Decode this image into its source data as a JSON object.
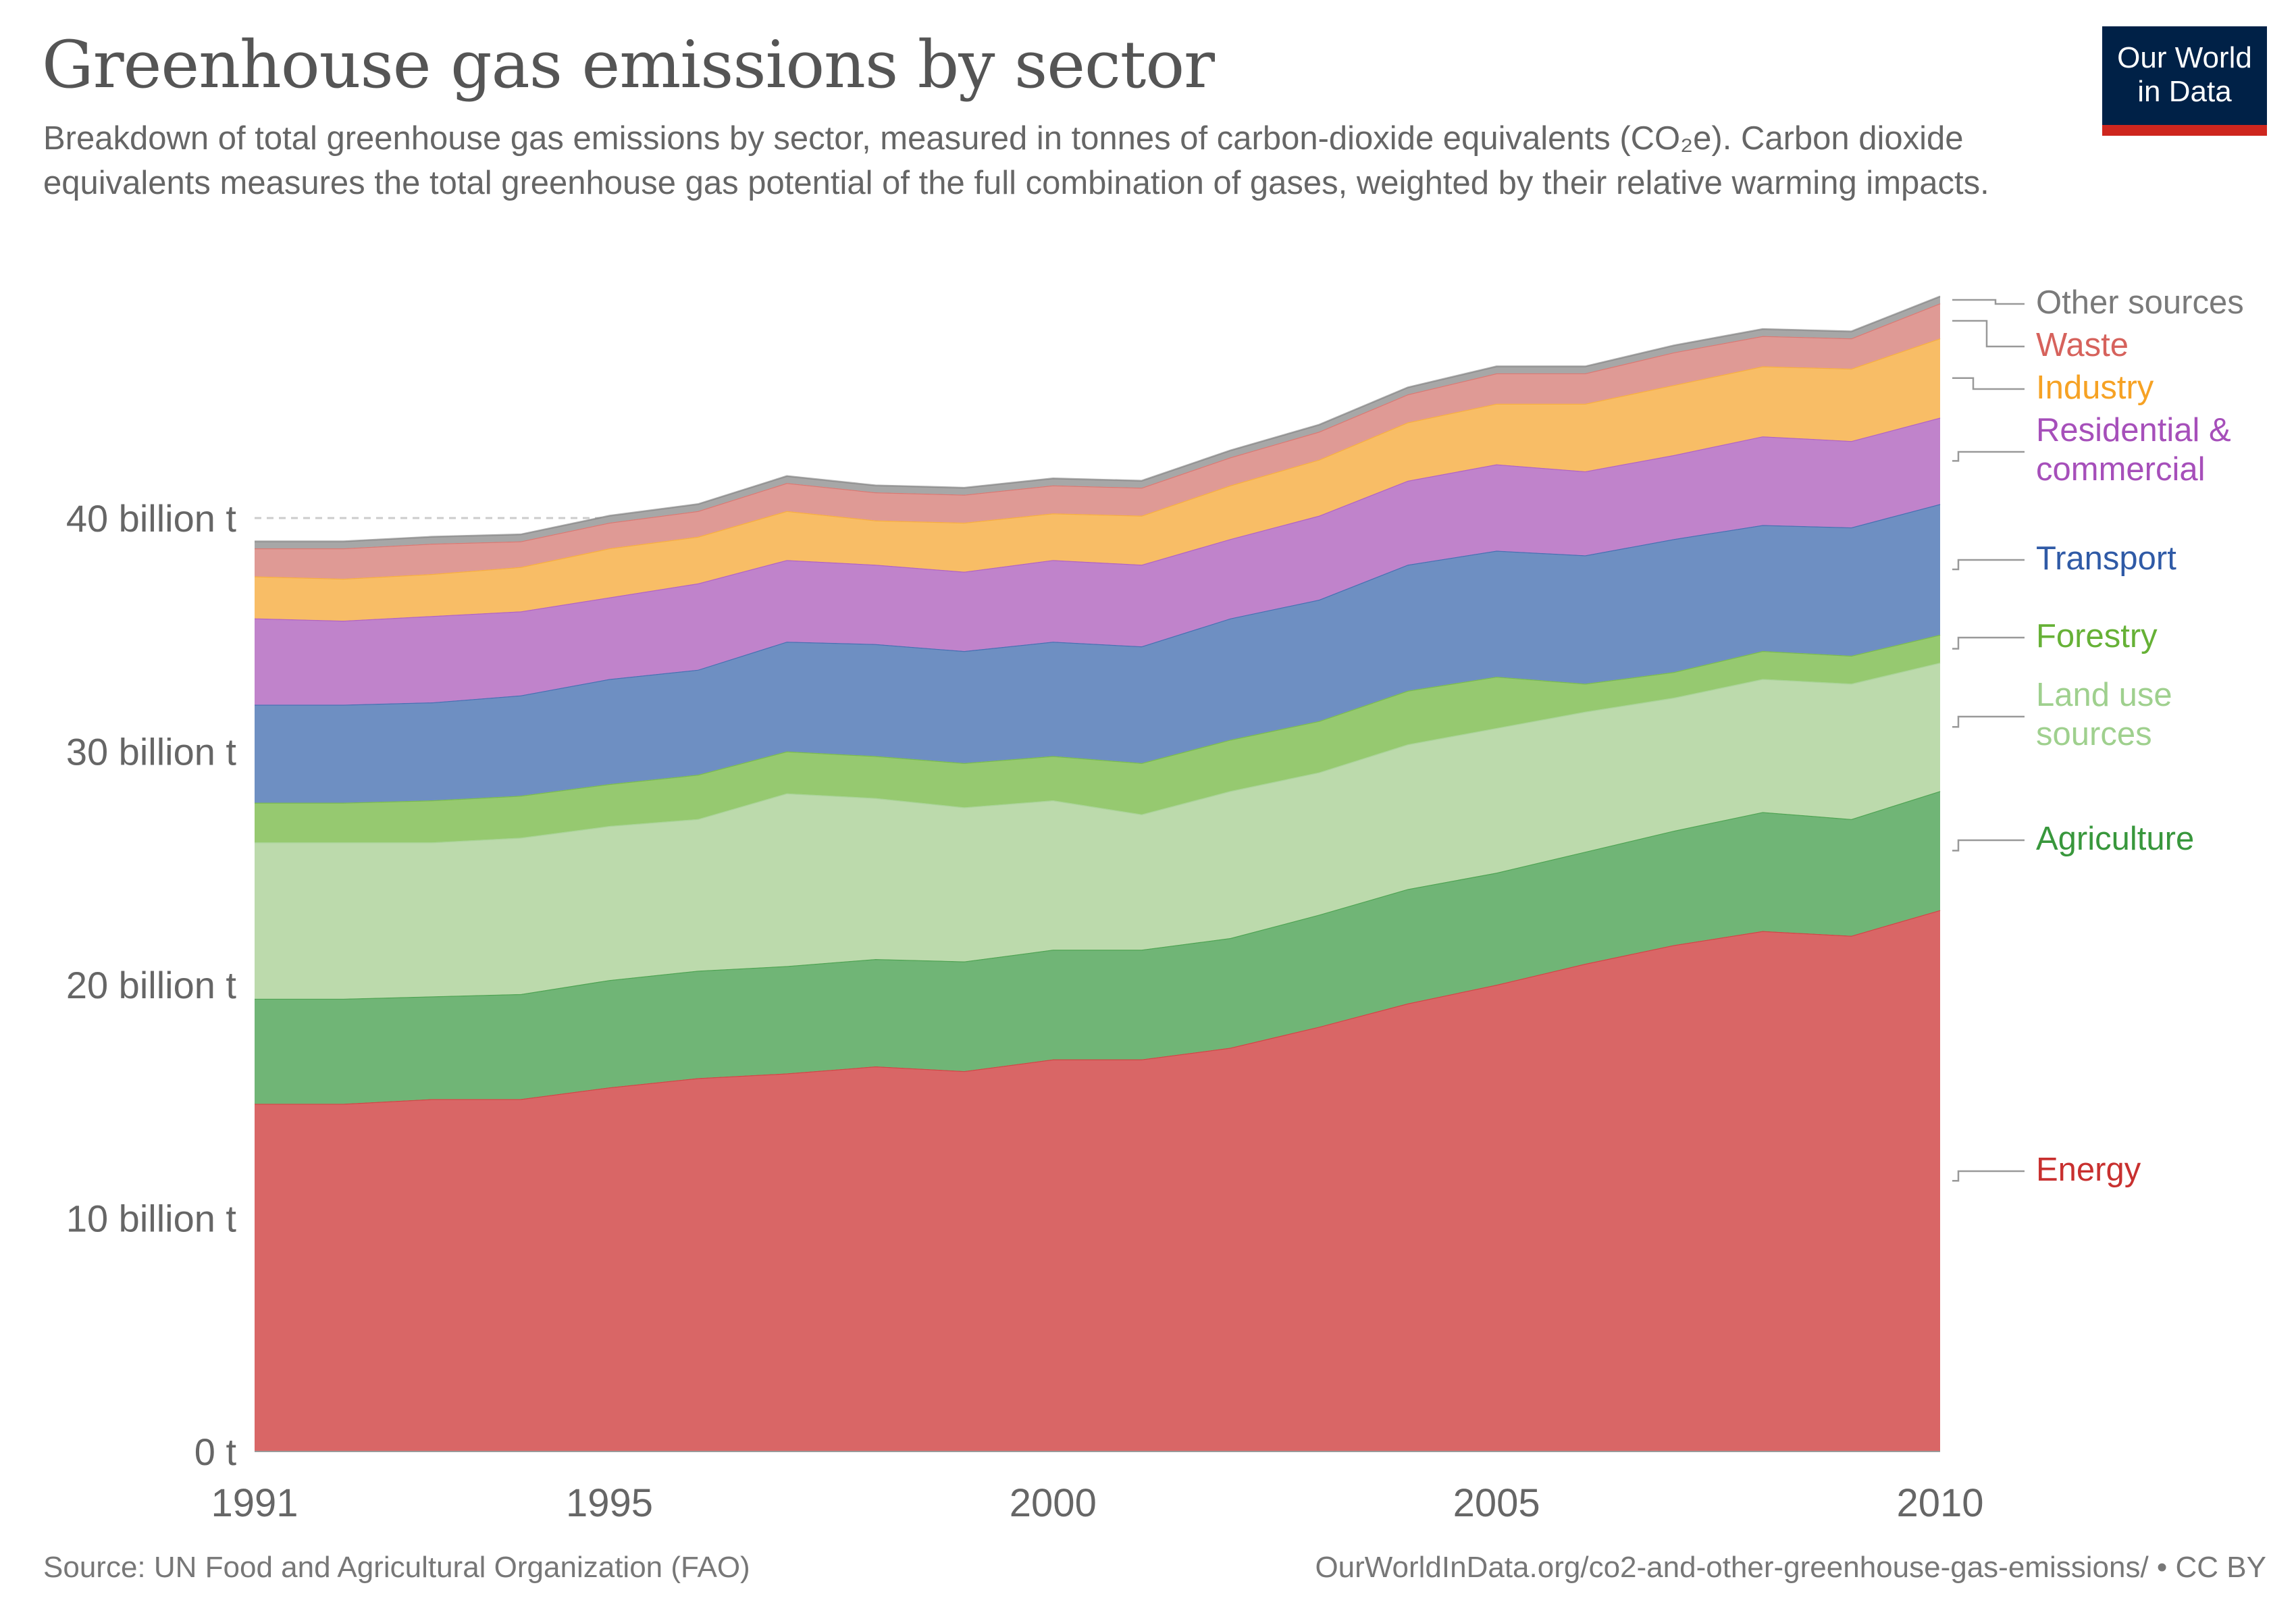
{
  "title": "Greenhouse gas emissions by sector",
  "subtitle": "Breakdown of total greenhouse gas emissions by sector, measured in tonnes of carbon-dioxide equivalents (CO₂e). Carbon dioxide equivalents measures the total greenhouse gas potential of the full combination of gases, weighted by their relative warming impacts.",
  "logo": {
    "line1": "Our World",
    "line2": "in Data"
  },
  "footer": {
    "source": "Source: UN Food and Agricultural Organization (FAO)",
    "url": "OurWorldInData.org/co2-and-other-greenhouse-gas-emissions/ • CC BY"
  },
  "chart_data": {
    "type": "area",
    "stacked": true,
    "title": "Greenhouse gas emissions by sector",
    "xlabel": "",
    "ylabel": "",
    "x": [
      1991,
      1992,
      1993,
      1994,
      1995,
      1996,
      1997,
      1998,
      1999,
      2000,
      2001,
      2002,
      2003,
      2004,
      2005,
      2006,
      2007,
      2008,
      2009,
      2010
    ],
    "x_ticks": [
      "1991",
      "1995",
      "2000",
      "2005",
      "2010"
    ],
    "y_ticks": [
      "0 t",
      "10 billion t",
      "20 billion t",
      "30 billion t",
      "40 billion t"
    ],
    "y_tick_values": [
      0,
      10,
      20,
      30,
      40
    ],
    "unit": "billion tonnes CO2e",
    "ylim": [
      0,
      50
    ],
    "grid": "horizontal dashed",
    "legend": "right (inline labels)",
    "series": [
      {
        "name": "Energy",
        "fill": "#d96666",
        "label_color": "#c8302f",
        "values": [
          14.9,
          14.9,
          15.1,
          15.1,
          15.6,
          16.0,
          16.2,
          16.5,
          16.3,
          16.8,
          16.8,
          17.3,
          18.2,
          19.2,
          20.0,
          20.9,
          21.7,
          22.3,
          22.1,
          23.2
        ]
      },
      {
        "name": "Agriculture",
        "fill": "#70b576",
        "label_color": "#38973c",
        "values": [
          4.5,
          4.5,
          4.4,
          4.5,
          4.6,
          4.6,
          4.6,
          4.6,
          4.7,
          4.7,
          4.7,
          4.7,
          4.8,
          4.9,
          4.8,
          4.8,
          4.9,
          5.1,
          5.0,
          5.1
        ]
      },
      {
        "name": "Land use sources",
        "fill": "#bcdaac",
        "label_color": "#9fd08e",
        "values": [
          6.7,
          6.7,
          6.6,
          6.7,
          6.6,
          6.5,
          7.4,
          6.9,
          6.6,
          6.4,
          5.8,
          6.3,
          6.1,
          6.2,
          6.2,
          6.0,
          5.7,
          5.7,
          5.8,
          5.5
        ]
      },
      {
        "name": "Forestry",
        "fill": "#96c970",
        "label_color": "#66b136",
        "values": [
          1.7,
          1.7,
          1.8,
          1.8,
          1.8,
          1.9,
          1.8,
          1.8,
          1.9,
          1.9,
          2.2,
          2.2,
          2.2,
          2.3,
          2.2,
          1.2,
          1.1,
          1.2,
          1.2,
          1.2
        ]
      },
      {
        "name": "Transport",
        "fill": "#6e8fc2",
        "label_color": "#2f5aa6",
        "values": [
          4.2,
          4.2,
          4.2,
          4.3,
          4.5,
          4.5,
          4.7,
          4.8,
          4.8,
          4.9,
          5.0,
          5.2,
          5.2,
          5.4,
          5.4,
          5.5,
          5.7,
          5.4,
          5.5,
          5.6
        ]
      },
      {
        "name": "Residential & commercial",
        "fill": "#c083cb",
        "label_color": "#a64fba",
        "values": [
          3.7,
          3.6,
          3.7,
          3.6,
          3.5,
          3.7,
          3.5,
          3.4,
          3.4,
          3.5,
          3.5,
          3.4,
          3.6,
          3.6,
          3.7,
          3.6,
          3.6,
          3.8,
          3.7,
          3.7
        ]
      },
      {
        "name": "Industry",
        "fill": "#f8bd66",
        "label_color": "#f6a224",
        "values": [
          1.8,
          1.8,
          1.8,
          1.9,
          2.1,
          2.0,
          2.1,
          1.9,
          2.1,
          2.0,
          2.1,
          2.3,
          2.4,
          2.5,
          2.6,
          2.9,
          3.0,
          3.0,
          3.1,
          3.4
        ]
      },
      {
        "name": "Waste",
        "fill": "#df9a95",
        "label_color": "#d6625c",
        "values": [
          1.2,
          1.3,
          1.3,
          1.1,
          1.1,
          1.1,
          1.2,
          1.2,
          1.2,
          1.2,
          1.2,
          1.2,
          1.2,
          1.2,
          1.3,
          1.3,
          1.4,
          1.3,
          1.3,
          1.5
        ]
      },
      {
        "name": "Other sources",
        "fill": "#a7a7a7",
        "label_color": "#7a7a7a",
        "values": [
          0.3,
          0.3,
          0.3,
          0.3,
          0.3,
          0.3,
          0.3,
          0.3,
          0.3,
          0.3,
          0.3,
          0.3,
          0.3,
          0.3,
          0.3,
          0.3,
          0.3,
          0.3,
          0.3,
          0.3
        ]
      }
    ],
    "legend_labels": [
      {
        "series": "Other sources",
        "lines": [
          "Other sources"
        ]
      },
      {
        "series": "Waste",
        "lines": [
          "Waste"
        ]
      },
      {
        "series": "Industry",
        "lines": [
          "Industry"
        ]
      },
      {
        "series": "Residential & commercial",
        "lines": [
          "Residential &",
          "commercial"
        ]
      },
      {
        "series": "Transport",
        "lines": [
          "Transport"
        ]
      },
      {
        "series": "Forestry",
        "lines": [
          "Forestry"
        ]
      },
      {
        "series": "Land use sources",
        "lines": [
          "Land use",
          "sources"
        ]
      },
      {
        "series": "Agriculture",
        "lines": [
          "Agriculture"
        ]
      },
      {
        "series": "Energy",
        "lines": [
          "Energy"
        ]
      }
    ]
  }
}
